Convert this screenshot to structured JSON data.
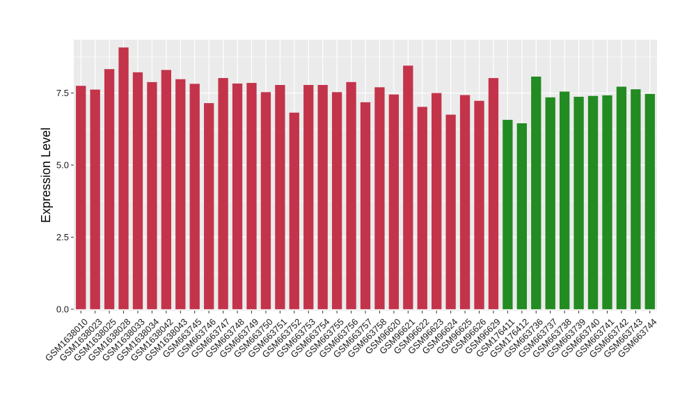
{
  "chart_data": {
    "type": "bar",
    "ylabel": "Expression Level",
    "xlabel": "",
    "ylim": [
      -0.05,
      9.35
    ],
    "yticks": [
      0.0,
      2.5,
      5.0,
      7.5
    ],
    "ytick_labels": [
      "0.0",
      "2.5",
      "5.0",
      "7.5"
    ],
    "grid": true,
    "categories": [
      "GSM1638010",
      "GSM1638023",
      "GSM1638025",
      "GSM1638028",
      "GSM1638033",
      "GSM1638034",
      "GSM1638042",
      "GSM1638043",
      "GSM663745",
      "GSM663746",
      "GSM663747",
      "GSM663748",
      "GSM663749",
      "GSM663750",
      "GSM663751",
      "GSM663752",
      "GSM663753",
      "GSM663754",
      "GSM663755",
      "GSM663756",
      "GSM663757",
      "GSM663758",
      "GSM96620",
      "GSM96621",
      "GSM96622",
      "GSM96623",
      "GSM96624",
      "GSM96625",
      "GSM96626",
      "GSM96629",
      "GSM176411",
      "GSM176412",
      "GSM663736",
      "GSM663737",
      "GSM663738",
      "GSM663739",
      "GSM663740",
      "GSM663741",
      "GSM663742",
      "GSM663743",
      "GSM663744"
    ],
    "values": [
      7.75,
      7.62,
      8.33,
      9.08,
      8.22,
      7.88,
      8.3,
      7.98,
      7.82,
      7.15,
      8.02,
      7.83,
      7.85,
      7.53,
      7.78,
      6.82,
      7.78,
      7.78,
      7.53,
      7.88,
      7.18,
      7.7,
      7.45,
      8.45,
      7.02,
      7.5,
      6.75,
      7.43,
      7.23,
      8.02,
      6.57,
      6.45,
      8.07,
      7.35,
      7.55,
      7.37,
      7.4,
      7.42,
      7.72,
      7.63,
      7.47
    ],
    "bar_colors": [
      "#c3344b",
      "#c3344b",
      "#c3344b",
      "#c3344b",
      "#c3344b",
      "#c3344b",
      "#c3344b",
      "#c3344b",
      "#c3344b",
      "#c3344b",
      "#c3344b",
      "#c3344b",
      "#c3344b",
      "#c3344b",
      "#c3344b",
      "#c3344b",
      "#c3344b",
      "#c3344b",
      "#c3344b",
      "#c3344b",
      "#c3344b",
      "#c3344b",
      "#c3344b",
      "#c3344b",
      "#c3344b",
      "#c3344b",
      "#c3344b",
      "#c3344b",
      "#c3344b",
      "#c3344b",
      "#228b22",
      "#228b22",
      "#228b22",
      "#228b22",
      "#228b22",
      "#228b22",
      "#228b22",
      "#228b22",
      "#228b22",
      "#228b22",
      "#228b22"
    ],
    "panel_background": "#ebebeb",
    "grid_color": "#ffffff"
  }
}
